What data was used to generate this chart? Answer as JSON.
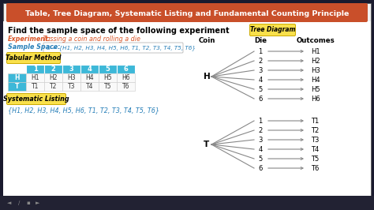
{
  "title": "Table, Tree Diagram, Systematic Listing and Fundamental Counting Principle",
  "title_bg": "#c94f2a",
  "title_color": "#ffffff",
  "heading": "Find the sample space of the following experiment",
  "experiment_label": "Experiment:",
  "experiment_text": " Tossing a coin and rolling a die",
  "sample_label": "Sample Space:",
  "sample_text": " S = {H1, H2, H3, H4, H5, H6, T1, T2, T3, T4, T5, T6}",
  "tabular_label": "Tabular Method",
  "tabular_bg": "#f9e04b",
  "table_header": [
    "",
    "1",
    "2",
    "3",
    "4",
    "5",
    "6"
  ],
  "table_header_bg": "#3db8d8",
  "table_row_H": [
    "H",
    "H1",
    "H2",
    "H3",
    "H4",
    "H5",
    "H6"
  ],
  "table_row_T": [
    "T",
    "T1",
    "T2",
    "T3",
    "T4",
    "T5",
    "T6"
  ],
  "systematic_label": "Systematic Listing",
  "systematic_text": "{H1, H2, H3, H4, H5, H6, T1, T2, T3, T4, T5, T6}",
  "tree_label": "Tree Diagram",
  "tree_label_bg": "#f9e04b",
  "coin_label": "Coin",
  "die_label": "Die",
  "outcomes_label": "Outcomes",
  "h_outcomes": [
    "H1",
    "H2",
    "H3",
    "H4",
    "H5",
    "H6"
  ],
  "t_outcomes": [
    "T1",
    "T2",
    "T3",
    "T4",
    "T5",
    "T6"
  ],
  "outer_bg": "#1a1a2e",
  "inner_bg": "#f5f5f5",
  "orange_color": "#d9572a",
  "text_blue": "#2980b9",
  "text_orange_italic": "#d9572a",
  "line_color": "#888888"
}
